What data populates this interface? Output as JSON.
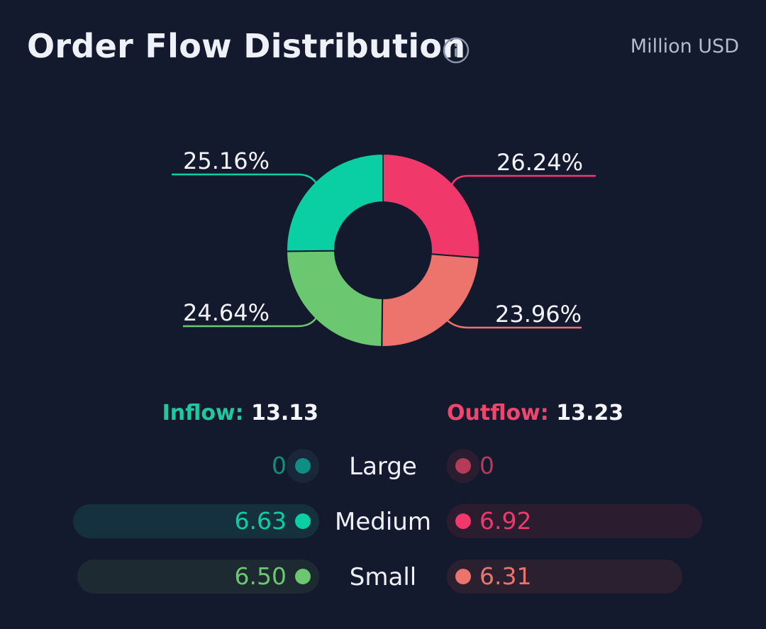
{
  "header": {
    "title": "Order Flow Distribution",
    "info_icon": "info-icon",
    "unit": "Million USD"
  },
  "chart_data": {
    "type": "pie",
    "donut": true,
    "slices": [
      {
        "label": "Outflow Medium",
        "value": 26.24,
        "display": "26.24%",
        "color": "#f0386b"
      },
      {
        "label": "Outflow Small",
        "value": 23.96,
        "display": "23.96%",
        "color": "#ec746c"
      },
      {
        "label": "Inflow Small",
        "value": 24.64,
        "display": "24.64%",
        "color": "#6cc870"
      },
      {
        "label": "Inflow Medium",
        "value": 25.16,
        "display": "25.16%",
        "color": "#0bcfa4"
      }
    ]
  },
  "summary": {
    "inflow_label": "Inflow:",
    "inflow_total": "13.13",
    "outflow_label": "Outflow:",
    "outflow_total": "13.23"
  },
  "rows": [
    {
      "name": "Large",
      "inflow": "0",
      "outflow": "0",
      "inflow_frac": 0.0,
      "outflow_frac": 0.0,
      "in_color": "#0f8e83",
      "out_color": "#b43c58",
      "in_bg": "#18283a",
      "out_bg": "#2a1d30"
    },
    {
      "name": "Medium",
      "inflow": "6.63",
      "outflow": "6.92",
      "inflow_frac": 0.96,
      "outflow_frac": 1.0,
      "in_color": "#0bcfa4",
      "out_color": "#f0386b",
      "in_bg": "#15303f",
      "out_bg": "#2c1c30"
    },
    {
      "name": "Small",
      "inflow": "6.50",
      "outflow": "6.31",
      "inflow_frac": 0.94,
      "outflow_frac": 0.91,
      "in_color": "#6cc870",
      "out_color": "#ec746c",
      "in_bg": "#1d2a31",
      "out_bg": "#2a2030"
    }
  ]
}
